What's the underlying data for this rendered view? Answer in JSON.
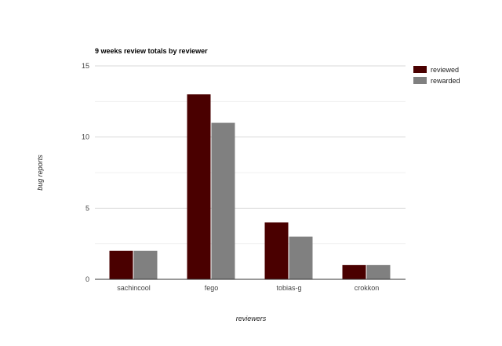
{
  "chart_data": {
    "type": "bar",
    "title": "9 weeks review totals by reviewer",
    "xlabel": "reviewers",
    "ylabel": "bug reports",
    "categories": [
      "sachincool",
      "fego",
      "tobias-g",
      "crokkon"
    ],
    "series": [
      {
        "name": "reviewed",
        "values": [
          2,
          13,
          4,
          1
        ],
        "color": "#4a0000"
      },
      {
        "name": "rewarded",
        "values": [
          2,
          11,
          3,
          1
        ],
        "color": "#808080"
      }
    ],
    "ylim": [
      0,
      15
    ],
    "yticks": [
      0,
      5,
      10,
      15
    ],
    "minor_grid": true,
    "legend_position": "top-right"
  }
}
